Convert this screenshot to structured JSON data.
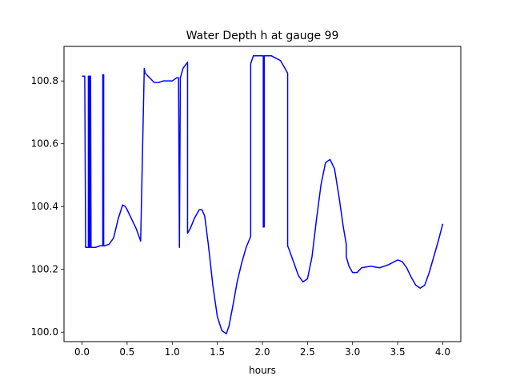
{
  "chart_data": {
    "type": "line",
    "title": "Water Depth h at gauge 99",
    "xlabel": "hours",
    "ylabel": "",
    "xlim": [
      -0.2,
      4.2
    ],
    "ylim": [
      99.97,
      100.91
    ],
    "xticks": [
      0.0,
      0.5,
      1.0,
      1.5,
      2.0,
      2.5,
      3.0,
      3.5,
      4.0
    ],
    "xtick_labels": [
      "0.0",
      "0.5",
      "1.0",
      "1.5",
      "2.0",
      "2.5",
      "3.0",
      "3.5",
      "4.0"
    ],
    "yticks": [
      100.0,
      100.2,
      100.4,
      100.6,
      100.8
    ],
    "ytick_labels": [
      "100.0",
      "100.2",
      "100.4",
      "100.6",
      "100.8"
    ],
    "grid": false,
    "series": [
      {
        "color": "#0000ff",
        "x": [
          0.0,
          0.03,
          0.03,
          0.04,
          0.05,
          0.06,
          0.07,
          0.07,
          0.075,
          0.08,
          0.08,
          0.085,
          0.09,
          0.09,
          0.095,
          0.1,
          0.1,
          0.15,
          0.2,
          0.23,
          0.23,
          0.24,
          0.24,
          0.25,
          0.25,
          0.3,
          0.35,
          0.4,
          0.45,
          0.48,
          0.5,
          0.55,
          0.6,
          0.65,
          0.69,
          0.69,
          0.7,
          0.75,
          0.8,
          0.85,
          0.9,
          0.95,
          1.0,
          1.05,
          1.07,
          1.08,
          1.08,
          1.09,
          1.09,
          1.12,
          1.17,
          1.17,
          1.2,
          1.25,
          1.3,
          1.33,
          1.36,
          1.4,
          1.45,
          1.5,
          1.55,
          1.6,
          1.63,
          1.67,
          1.72,
          1.77,
          1.82,
          1.87,
          1.87,
          1.9,
          1.95,
          2.0,
          2.01,
          2.01,
          2.02,
          2.02,
          2.03,
          2.03,
          2.1,
          2.2,
          2.28,
          2.28,
          2.3,
          2.35,
          2.4,
          2.45,
          2.5,
          2.55,
          2.6,
          2.65,
          2.7,
          2.75,
          2.8,
          2.85,
          2.9,
          2.93,
          2.93,
          2.96,
          3.0,
          3.05,
          3.1,
          3.2,
          3.3,
          3.4,
          3.5,
          3.55,
          3.6,
          3.65,
          3.7,
          3.75,
          3.8,
          3.85,
          3.9,
          3.95,
          4.0
        ],
        "y": [
          100.815,
          100.815,
          100.815,
          100.27,
          100.27,
          100.27,
          100.27,
          100.815,
          100.815,
          100.27,
          100.815,
          100.815,
          100.27,
          100.815,
          100.815,
          100.27,
          100.27,
          100.27,
          100.275,
          100.275,
          100.82,
          100.82,
          100.275,
          100.275,
          100.275,
          100.28,
          100.3,
          100.36,
          100.405,
          100.4,
          100.39,
          100.36,
          100.33,
          100.29,
          100.84,
          100.84,
          100.825,
          100.81,
          100.795,
          100.795,
          100.8,
          100.8,
          100.8,
          100.81,
          100.81,
          100.27,
          100.27,
          100.81,
          100.81,
          100.84,
          100.86,
          100.315,
          100.33,
          100.365,
          100.39,
          100.39,
          100.37,
          100.28,
          100.15,
          100.05,
          100.005,
          99.995,
          100.02,
          100.08,
          100.16,
          100.22,
          100.27,
          100.305,
          100.855,
          100.88,
          100.88,
          100.88,
          100.88,
          100.335,
          100.335,
          100.88,
          100.88,
          100.88,
          100.88,
          100.865,
          100.825,
          100.275,
          100.26,
          100.22,
          100.18,
          100.16,
          100.17,
          100.24,
          100.36,
          100.47,
          100.54,
          100.55,
          100.52,
          100.43,
          100.33,
          100.28,
          100.24,
          100.21,
          100.19,
          100.19,
          100.205,
          100.21,
          100.205,
          100.215,
          100.23,
          100.225,
          100.205,
          100.175,
          100.15,
          100.14,
          100.15,
          100.19,
          100.24,
          100.29,
          100.345
        ]
      }
    ]
  }
}
